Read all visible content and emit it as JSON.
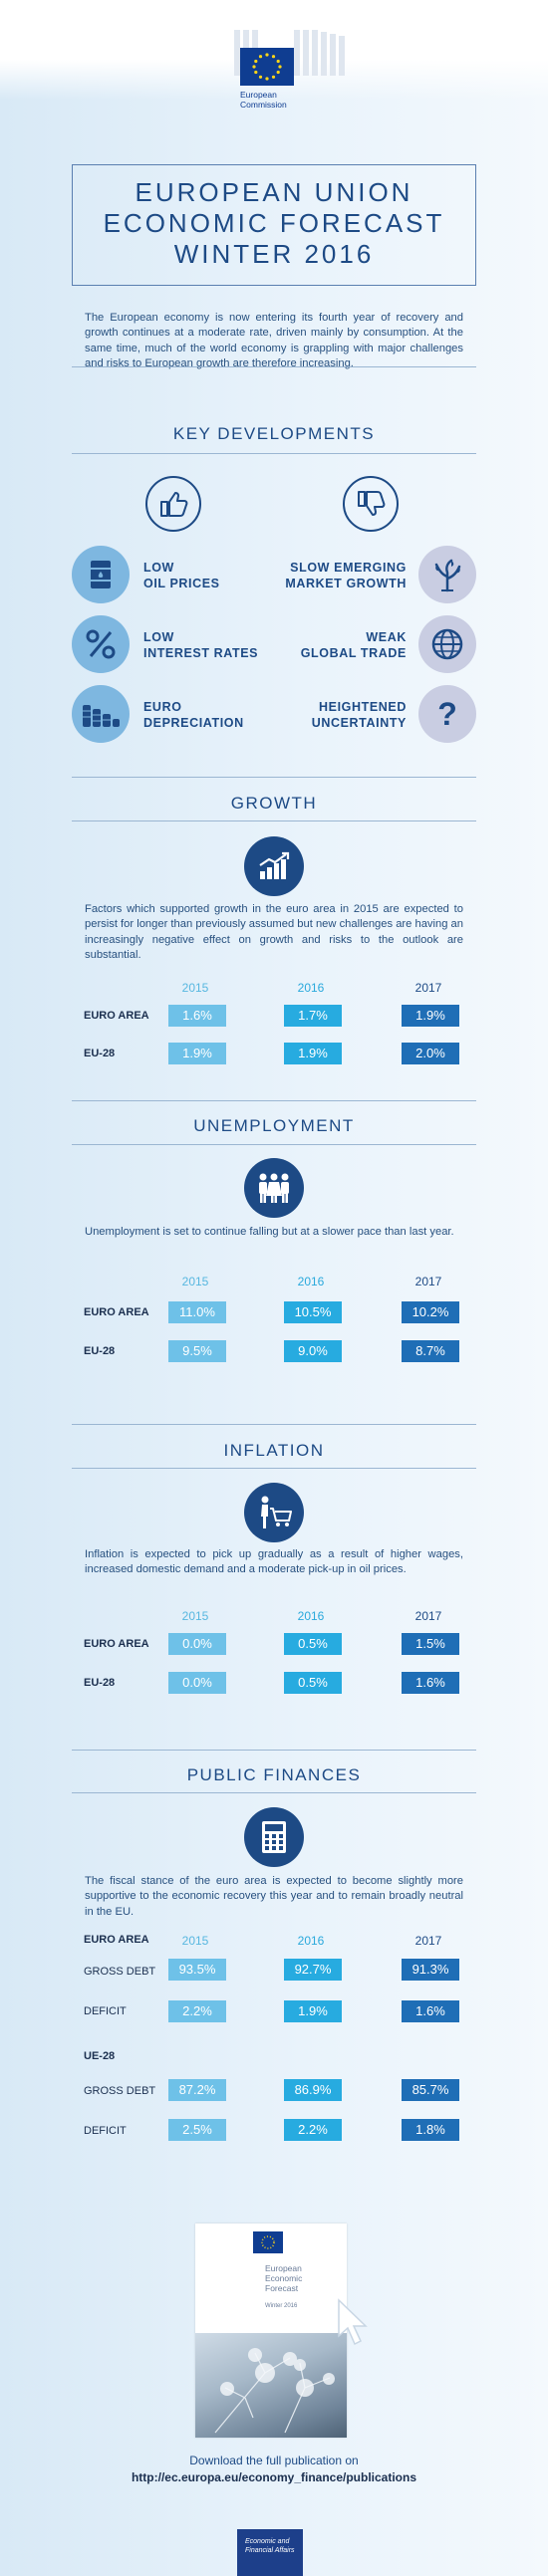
{
  "logo": {
    "name_line1": "European",
    "name_line2": "Commission"
  },
  "title": {
    "line1": "EUROPEAN UNION",
    "line2": "ECONOMIC FORECAST",
    "line3": "WINTER 2016"
  },
  "intro": "The European economy is now entering its fourth year of recovery and growth continues at a moderate rate, driven mainly by consumption. At the same time, much of the world economy is grappling with major challenges and risks to European growth are therefore increasing.",
  "key_developments": {
    "heading": "KEY DEVELOPMENTS",
    "positive": [
      {
        "line1": "LOW",
        "line2": "OIL PRICES",
        "icon": "oil-barrel-icon"
      },
      {
        "line1": "LOW",
        "line2": "INTEREST RATES",
        "icon": "percent-icon"
      },
      {
        "line1": "EURO",
        "line2": "DEPRECIATION",
        "icon": "coins-icon"
      }
    ],
    "negative": [
      {
        "line1": "SLOW EMERGING",
        "line2": "MARKET GROWTH",
        "icon": "wilted-plant-icon"
      },
      {
        "line1": "WEAK",
        "line2": "GLOBAL TRADE",
        "icon": "globe-icon"
      },
      {
        "line1": "HEIGHTENED",
        "line2": "UNCERTAINTY",
        "icon": "question-mark-icon"
      }
    ]
  },
  "colors": {
    "c2015": "#6ec1e8",
    "c2016": "#27abe0",
    "c2017": "#1f6eb6",
    "navy": "#1d4a85"
  },
  "years": [
    "2015",
    "2016",
    "2017"
  ],
  "growth": {
    "heading": "GROWTH",
    "text": "Factors which supported growth in the euro area in 2015 are expected to persist for longer than previously assumed but new challenges are having an increasingly negative effect on growth and risks to the outlook are substantial.",
    "rows": [
      {
        "label": "EURO AREA",
        "values": [
          "1.6%",
          "1.7%",
          "1.9%"
        ]
      },
      {
        "label": "EU-28",
        "values": [
          "1.9%",
          "1.9%",
          "2.0%"
        ]
      }
    ]
  },
  "unemployment": {
    "heading": "UNEMPLOYMENT",
    "text": "Unemployment is set to continue falling but at a slower pace than last year.",
    "rows": [
      {
        "label": "EURO AREA",
        "values": [
          "11.0%",
          "10.5%",
          "10.2%"
        ]
      },
      {
        "label": "EU-28",
        "values": [
          "9.5%",
          "9.0%",
          "8.7%"
        ]
      }
    ]
  },
  "inflation": {
    "heading": "INFLATION",
    "text": "Inflation is expected to pick up gradually as a result of higher wages, increased domestic demand and a moderate pick-up in oil prices.",
    "rows": [
      {
        "label": "EURO AREA",
        "values": [
          "0.0%",
          "0.5%",
          "1.5%"
        ]
      },
      {
        "label": "EU-28",
        "values": [
          "0.0%",
          "0.5%",
          "1.6%"
        ]
      }
    ]
  },
  "public_finances": {
    "heading": "PUBLIC FINANCES",
    "text": "The fiscal stance of the euro area is expected to become slightly more supportive to the economic recovery this year and to remain broadly neutral in the EU.",
    "group1": "EURO AREA",
    "group2": "UE-28",
    "rows": [
      {
        "label": "GROSS DEBT",
        "values": [
          "93.5%",
          "92.7%",
          "91.3%"
        ]
      },
      {
        "label": "DEFICIT",
        "values": [
          "2.2%",
          "1.9%",
          "1.6%"
        ]
      },
      {
        "label": "GROSS DEBT",
        "values": [
          "87.2%",
          "86.9%",
          "85.7%"
        ]
      },
      {
        "label": "DEFICIT",
        "values": [
          "2.5%",
          "2.2%",
          "1.8%"
        ]
      }
    ]
  },
  "cover": {
    "line1": "European",
    "line2": "Economic",
    "line3": "Forecast",
    "winter": "Winter 2016"
  },
  "download": {
    "text": "Download the full publication on",
    "url": "http://ec.europa.eu/economy_finance/publications"
  },
  "footer": {
    "line1": "Economic and",
    "line2": "Financial Affairs"
  }
}
